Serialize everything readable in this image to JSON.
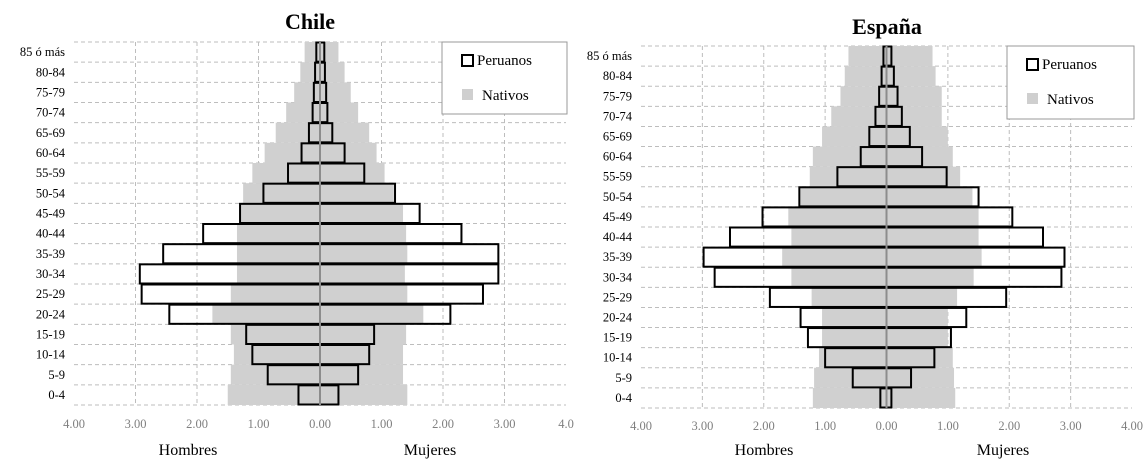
{
  "chart_data": [
    {
      "type": "bar",
      "title": "Chile",
      "categories": [
        "0-4",
        "5-9",
        "10-14",
        "15-19",
        "20-24",
        "25-29",
        "30-34",
        "35-39",
        "40-44",
        "45-49",
        "50-54",
        "55-59",
        "60-64",
        "65-69",
        "70-74",
        "75-79",
        "80-84",
        "85 ó más"
      ],
      "xlim": [
        -4,
        4
      ],
      "x_ticks": [
        "4.00",
        "3.00",
        "2.00",
        "1.00",
        "0.00",
        "1.00",
        "2.00",
        "3.00",
        "4.0"
      ],
      "left_label": "Hombres",
      "right_label": "Mujeres",
      "grid": true,
      "legend_position": "top-right",
      "series": [
        {
          "name": "Peruanos",
          "style": "outline",
          "hombres": [
            0.35,
            0.85,
            1.1,
            1.2,
            2.45,
            2.9,
            2.93,
            2.55,
            1.9,
            1.3,
            0.92,
            0.52,
            0.3,
            0.18,
            0.12,
            0.1,
            0.08,
            0.06
          ],
          "mujeres": [
            0.3,
            0.62,
            0.8,
            0.88,
            2.12,
            2.65,
            2.9,
            2.9,
            2.3,
            1.62,
            1.22,
            0.72,
            0.4,
            0.2,
            0.12,
            0.1,
            0.08,
            0.07
          ]
        },
        {
          "name": "Nativos",
          "style": "filled",
          "hombres": [
            1.5,
            1.45,
            1.4,
            1.45,
            1.75,
            1.45,
            1.35,
            1.35,
            1.35,
            1.3,
            1.25,
            1.1,
            0.9,
            0.72,
            0.55,
            0.42,
            0.32,
            0.25
          ],
          "mujeres": [
            1.42,
            1.35,
            1.35,
            1.4,
            1.68,
            1.42,
            1.38,
            1.42,
            1.4,
            1.35,
            1.2,
            1.05,
            0.92,
            0.8,
            0.62,
            0.5,
            0.4,
            0.3
          ]
        }
      ]
    },
    {
      "type": "bar",
      "title": "España",
      "categories": [
        "0-4",
        "5-9",
        "10-14",
        "15-19",
        "20-24",
        "25-29",
        "30-34",
        "35-39",
        "40-44",
        "45-49",
        "50-54",
        "55-59",
        "60-64",
        "65-69",
        "70-74",
        "75-79",
        "80-84",
        "85 ó más"
      ],
      "xlim": [
        -4,
        4
      ],
      "x_ticks": [
        "4.00",
        "3.00",
        "2.00",
        "1.00",
        "0.00",
        "1.00",
        "2.00",
        "3.00",
        "4.00"
      ],
      "left_label": "Hombres",
      "right_label": "Mujeres",
      "grid": true,
      "legend_position": "top-right",
      "series": [
        {
          "name": "Peruanos",
          "style": "outline",
          "hombres": [
            0.1,
            0.55,
            1.0,
            1.28,
            1.4,
            1.9,
            2.8,
            2.98,
            2.55,
            2.02,
            1.42,
            0.8,
            0.42,
            0.28,
            0.18,
            0.12,
            0.08,
            0.05
          ],
          "mujeres": [
            0.08,
            0.4,
            0.78,
            1.05,
            1.3,
            1.95,
            2.85,
            2.9,
            2.55,
            2.05,
            1.5,
            0.98,
            0.58,
            0.38,
            0.25,
            0.18,
            0.12,
            0.08
          ]
        },
        {
          "name": "Nativos",
          "style": "filled",
          "hombres": [
            1.2,
            1.18,
            1.1,
            1.05,
            1.05,
            1.22,
            1.55,
            1.7,
            1.55,
            1.6,
            1.4,
            1.25,
            1.2,
            1.05,
            0.9,
            0.75,
            0.68,
            0.62
          ],
          "mujeres": [
            1.12,
            1.1,
            1.08,
            1.0,
            1.0,
            1.15,
            1.42,
            1.55,
            1.5,
            1.5,
            1.4,
            1.2,
            1.08,
            1.0,
            0.9,
            0.9,
            0.8,
            0.75
          ]
        }
      ]
    }
  ]
}
